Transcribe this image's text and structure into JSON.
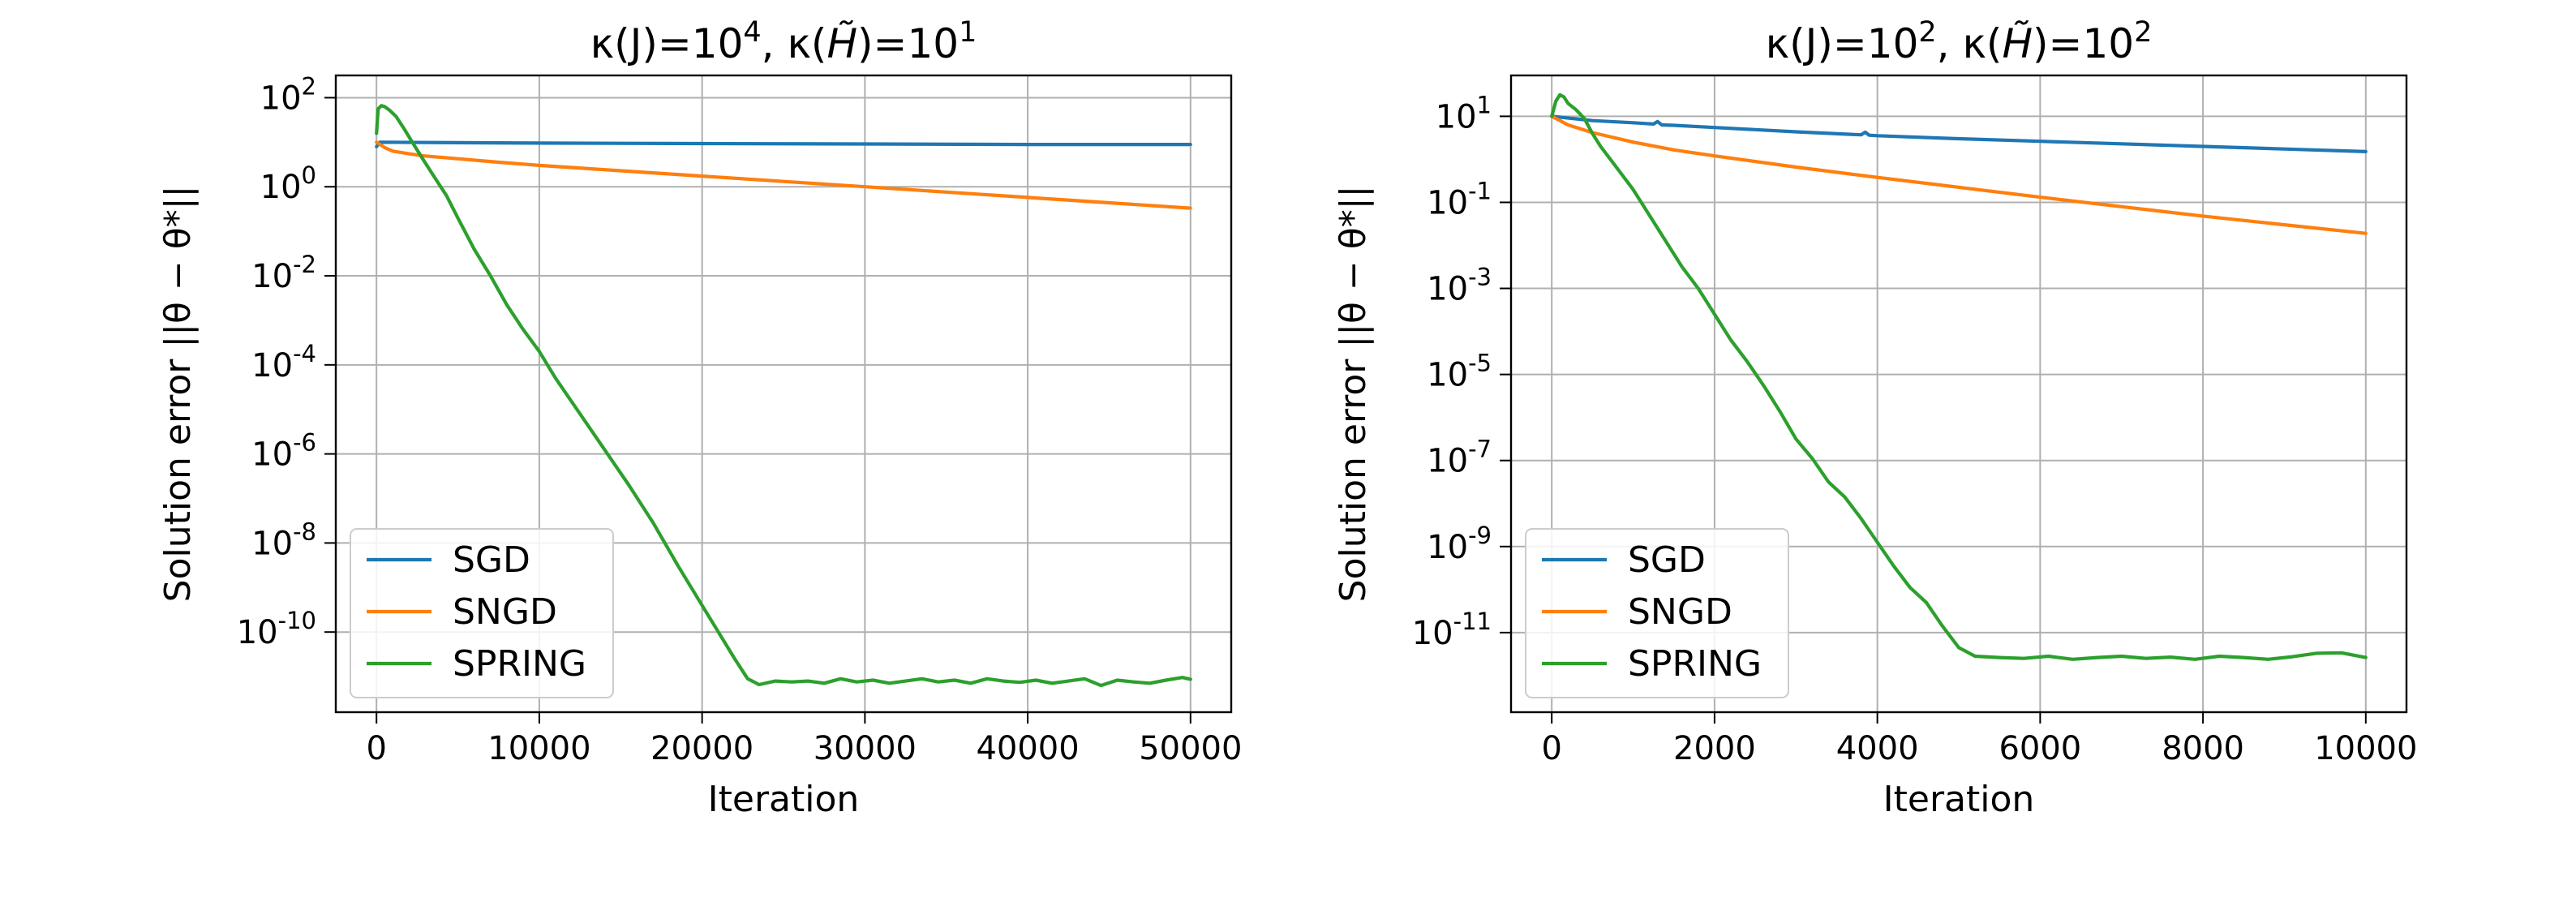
{
  "chart_data": [
    {
      "type": "line",
      "title": "κ(J)=10^4, κ(H̃)=10^1",
      "title_parts": [
        "κ(J)=10",
        "4",
        ", κ(",
        "H̃",
        ")=10",
        "1"
      ],
      "xlabel": "Iteration",
      "ylabel": "Solution error ||θ − θ*||",
      "yscale": "log",
      "xlim": [
        -2500,
        52500
      ],
      "ylim": [
        -11.8,
        2.5
      ],
      "x_ticks": [
        0,
        10000,
        20000,
        30000,
        40000,
        50000
      ],
      "x_tick_labels": [
        "0",
        "10000",
        "20000",
        "30000",
        "40000",
        "50000"
      ],
      "y_ticks": [
        2,
        0,
        -2,
        -4,
        -6,
        -8,
        -10
      ],
      "y_tick_labels": [
        {
          "base": "10",
          "exp": "2"
        },
        {
          "base": "10",
          "exp": "0"
        },
        {
          "base": "10",
          "exp": "-2"
        },
        {
          "base": "10",
          "exp": "-4"
        },
        {
          "base": "10",
          "exp": "-6"
        },
        {
          "base": "10",
          "exp": "-8"
        },
        {
          "base": "10",
          "exp": "-10"
        }
      ],
      "grid": true,
      "legend_position": "lower-left",
      "series": [
        {
          "name": "SGD",
          "color": "#1f77b4",
          "x": [
            0,
            200,
            5000,
            10000,
            20000,
            30000,
            40000,
            50000
          ],
          "log10_y": [
            0.9,
            1.0,
            0.99,
            0.98,
            0.97,
            0.96,
            0.95,
            0.95
          ]
        },
        {
          "name": "SNGD",
          "color": "#ff7f0e",
          "x": [
            0,
            500,
            1000,
            2000,
            3000,
            5000,
            7500,
            10000,
            15000,
            20000,
            25000,
            30000,
            35000,
            40000,
            45000,
            50000
          ],
          "log10_y": [
            1.0,
            0.88,
            0.8,
            0.74,
            0.69,
            0.63,
            0.55,
            0.48,
            0.36,
            0.24,
            0.12,
            0.0,
            -0.12,
            -0.24,
            -0.36,
            -0.48
          ]
        },
        {
          "name": "SPRING",
          "color": "#2ca02c",
          "x": [
            0,
            100,
            300,
            500,
            800,
            1200,
            1700,
            2200,
            2800,
            3500,
            4300,
            5000,
            6000,
            7000,
            8000,
            9000,
            10000,
            11000,
            12500,
            14000,
            15500,
            17000,
            18500,
            20000,
            21000,
            22000,
            22800,
            23500,
            24500,
            25500,
            26500,
            27500,
            28500,
            29500,
            30500,
            31500,
            32500,
            33500,
            34500,
            35500,
            36500,
            37500,
            38500,
            39500,
            40500,
            41500,
            42500,
            43500,
            44500,
            45500,
            46500,
            47500,
            48500,
            49500,
            50000
          ],
          "log10_y": [
            1.2,
            1.75,
            1.82,
            1.8,
            1.72,
            1.58,
            1.3,
            1.0,
            0.65,
            0.25,
            -0.2,
            -0.7,
            -1.4,
            -2.0,
            -2.65,
            -3.2,
            -3.7,
            -4.3,
            -5.1,
            -5.9,
            -6.7,
            -7.55,
            -8.5,
            -9.4,
            -10.0,
            -10.6,
            -11.05,
            -11.18,
            -11.1,
            -11.12,
            -11.1,
            -11.15,
            -11.05,
            -11.12,
            -11.08,
            -11.15,
            -11.1,
            -11.05,
            -11.12,
            -11.08,
            -11.15,
            -11.05,
            -11.1,
            -11.13,
            -11.08,
            -11.15,
            -11.1,
            -11.05,
            -11.2,
            -11.08,
            -11.12,
            -11.15,
            -11.08,
            -11.02,
            -11.06
          ]
        }
      ]
    },
    {
      "type": "line",
      "title": "κ(J)=10^2, κ(H̃)=10^2",
      "title_parts": [
        "κ(J)=10",
        "2",
        ", κ(",
        "H̃",
        ")=10",
        "2"
      ],
      "xlabel": "Iteration",
      "ylabel": "Solution error ||θ − θ*||",
      "yscale": "log",
      "xlim": [
        -500,
        10500
      ],
      "ylim": [
        -12.85,
        1.95
      ],
      "x_ticks": [
        0,
        2000,
        4000,
        6000,
        8000,
        10000
      ],
      "x_tick_labels": [
        "0",
        "2000",
        "4000",
        "6000",
        "8000",
        "10000"
      ],
      "y_ticks": [
        1,
        -1,
        -3,
        -5,
        -7,
        -9,
        -11
      ],
      "y_tick_labels": [
        {
          "base": "10",
          "exp": "1"
        },
        {
          "base": "10",
          "exp": "-1"
        },
        {
          "base": "10",
          "exp": "-3"
        },
        {
          "base": "10",
          "exp": "-5"
        },
        {
          "base": "10",
          "exp": "-7"
        },
        {
          "base": "10",
          "exp": "-9"
        },
        {
          "base": "10",
          "exp": "-11"
        }
      ],
      "grid": true,
      "legend_position": "lower-left",
      "series": [
        {
          "name": "SGD",
          "color": "#1f77b4",
          "x": [
            0,
            500,
            1000,
            1250,
            1300,
            1350,
            1500,
            2000,
            3000,
            3800,
            3850,
            3900,
            4000,
            5000,
            6000,
            7000,
            8000,
            9000,
            10000
          ],
          "log10_y": [
            1.0,
            0.9,
            0.85,
            0.82,
            0.88,
            0.8,
            0.79,
            0.74,
            0.64,
            0.57,
            0.63,
            0.56,
            0.55,
            0.48,
            0.42,
            0.36,
            0.3,
            0.24,
            0.18
          ]
        },
        {
          "name": "SNGD",
          "color": "#ff7f0e",
          "x": [
            0,
            200,
            500,
            1000,
            1500,
            2000,
            3000,
            4000,
            5000,
            6000,
            7000,
            8000,
            9000,
            10000
          ],
          "log10_y": [
            1.0,
            0.8,
            0.62,
            0.4,
            0.22,
            0.08,
            -0.18,
            -0.42,
            -0.65,
            -0.88,
            -1.1,
            -1.32,
            -1.52,
            -1.72
          ]
        },
        {
          "name": "SPRING",
          "color": "#2ca02c",
          "x": [
            0,
            50,
            100,
            150,
            200,
            300,
            400,
            500,
            600,
            800,
            1000,
            1200,
            1400,
            1600,
            1800,
            2000,
            2200,
            2400,
            2600,
            2800,
            3000,
            3200,
            3400,
            3600,
            3800,
            4000,
            4200,
            4400,
            4600,
            4800,
            5000,
            5200,
            5500,
            5800,
            6100,
            6400,
            6700,
            7000,
            7300,
            7600,
            7900,
            8200,
            8500,
            8800,
            9100,
            9400,
            9700,
            10000
          ],
          "log10_y": [
            1.0,
            1.35,
            1.5,
            1.45,
            1.3,
            1.15,
            0.95,
            0.6,
            0.3,
            -0.2,
            -0.7,
            -1.3,
            -1.9,
            -2.5,
            -3.0,
            -3.6,
            -4.2,
            -4.7,
            -5.25,
            -5.85,
            -6.5,
            -6.95,
            -7.5,
            -7.85,
            -8.35,
            -8.9,
            -9.45,
            -9.95,
            -10.3,
            -10.85,
            -11.35,
            -11.55,
            -11.58,
            -11.6,
            -11.55,
            -11.62,
            -11.58,
            -11.55,
            -11.6,
            -11.57,
            -11.62,
            -11.55,
            -11.58,
            -11.62,
            -11.56,
            -11.48,
            -11.47,
            -11.58
          ]
        }
      ]
    }
  ]
}
